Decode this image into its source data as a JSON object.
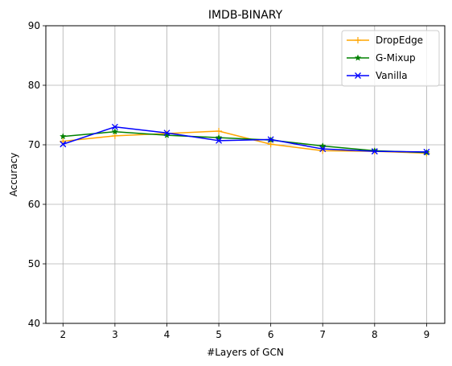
{
  "chart_data": {
    "type": "line",
    "title": "IMDB-BINARY",
    "xlabel": "#Layers of GCN",
    "ylabel": "Accuracy",
    "x": [
      2,
      3,
      4,
      5,
      6,
      7,
      8,
      9
    ],
    "xticks": [
      "2",
      "3",
      "4",
      "5",
      "6",
      "7",
      "8",
      "9"
    ],
    "xlim": [
      1.67,
      9.35
    ],
    "ylim": [
      40,
      90
    ],
    "yticks": [
      "40",
      "50",
      "60",
      "70",
      "80",
      "90"
    ],
    "grid": true,
    "legend_position": "top-right",
    "series": [
      {
        "name": "DropEdge",
        "color": "#ffa500",
        "marker": "plus",
        "values": [
          70.6,
          71.5,
          71.9,
          72.3,
          70.1,
          69.0,
          68.9,
          68.6
        ]
      },
      {
        "name": "G-Mixup",
        "color": "#008000",
        "marker": "star",
        "values": [
          71.4,
          72.2,
          71.6,
          71.2,
          70.8,
          69.8,
          69.0,
          68.7
        ]
      },
      {
        "name": "Vanilla",
        "color": "#0000ff",
        "marker": "x",
        "values": [
          70.1,
          73.0,
          72.0,
          70.7,
          70.9,
          69.3,
          68.9,
          68.8
        ]
      }
    ]
  }
}
